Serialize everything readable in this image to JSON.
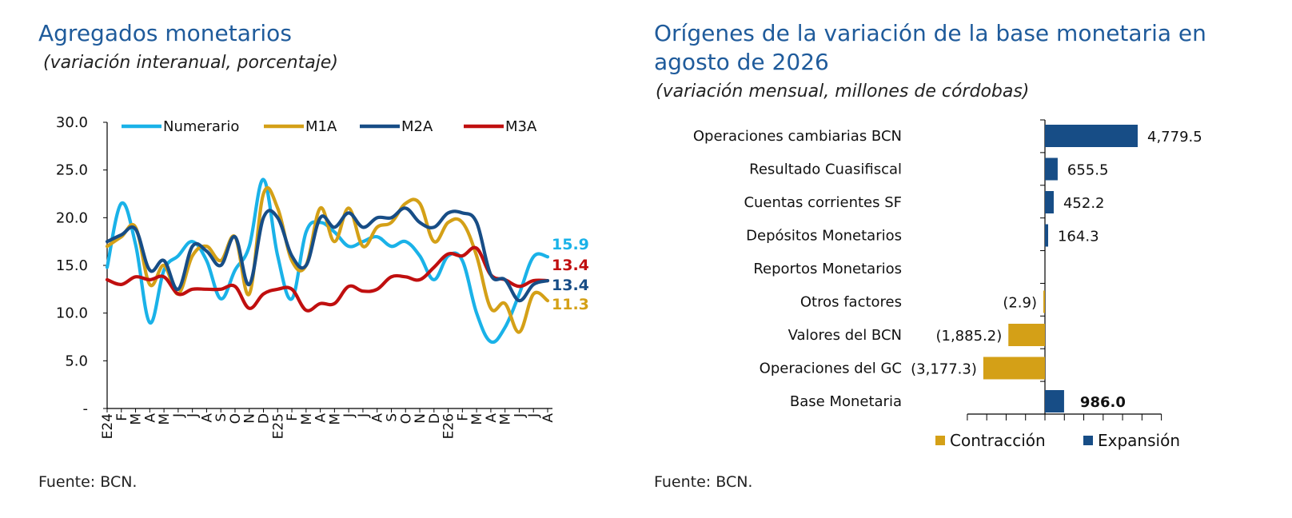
{
  "left": {
    "title": "Agregados monetarios",
    "subtitle": "(variación interanual, porcentaje)",
    "source": "Fuente: BCN."
  },
  "right": {
    "title_line1": "Orígenes de la variación de la base monetaria en",
    "title_line2": "agosto de 2026",
    "subtitle": "(variación mensual, millones de córdobas)",
    "source": "Fuente: BCN."
  },
  "chart_data": [
    {
      "type": "line",
      "y_ticks": [
        "30.0",
        "25.0",
        "20.0",
        "15.0",
        "10.0",
        "5.0",
        "-"
      ],
      "ylim": [
        0,
        30
      ],
      "categories": [
        "E24",
        "F",
        "M",
        "A",
        "M",
        "J",
        "J",
        "A",
        "S",
        "O",
        "N",
        "D",
        "E25",
        "F",
        "M",
        "A",
        "M",
        "J",
        "J",
        "A",
        "S",
        "O",
        "N",
        "D",
        "E26",
        "F",
        "M",
        "A",
        "M",
        "J",
        "J",
        "A"
      ],
      "series": [
        {
          "name": "Numerario",
          "color": "#1ab2e8",
          "values": [
            14.8,
            21.5,
            17.2,
            9.0,
            14.5,
            16.0,
            17.5,
            15.5,
            11.5,
            14.5,
            17.0,
            24.0,
            16.0,
            11.5,
            18.5,
            19.5,
            18.5,
            17.0,
            17.5,
            18.0,
            17.0,
            17.5,
            16.0,
            13.5,
            16.0,
            15.5,
            10.0,
            7.0,
            8.5,
            12.0,
            15.9,
            15.9
          ],
          "end_label": "15.9"
        },
        {
          "name": "M1A",
          "color": "#d4a017",
          "values": [
            17.0,
            18.0,
            19.0,
            13.0,
            15.0,
            12.0,
            16.0,
            17.0,
            15.5,
            18.0,
            12.0,
            22.5,
            21.0,
            15.5,
            15.0,
            21.0,
            17.5,
            21.0,
            17.0,
            19.0,
            19.5,
            21.5,
            21.5,
            17.5,
            19.5,
            19.5,
            16.0,
            10.5,
            11.0,
            8.0,
            12.0,
            11.3
          ],
          "end_label": "11.3"
        },
        {
          "name": "M2A",
          "color": "#174d86",
          "values": [
            17.5,
            18.2,
            18.8,
            14.5,
            15.5,
            12.5,
            17.0,
            16.5,
            15.0,
            18.0,
            13.0,
            20.0,
            20.0,
            16.0,
            15.0,
            20.0,
            19.0,
            20.5,
            19.0,
            20.0,
            20.0,
            21.0,
            19.5,
            19.0,
            20.5,
            20.5,
            19.5,
            14.0,
            13.5,
            11.3,
            13.0,
            13.4
          ],
          "end_label": "13.4"
        },
        {
          "name": "M3A",
          "color": "#c00f0f",
          "values": [
            13.5,
            13.0,
            13.8,
            13.5,
            13.8,
            12.0,
            12.5,
            12.5,
            12.5,
            12.8,
            10.5,
            12.0,
            12.5,
            12.5,
            10.3,
            11.0,
            11.0,
            12.8,
            12.3,
            12.5,
            13.8,
            13.8,
            13.5,
            14.8,
            16.2,
            16.0,
            16.8,
            14.0,
            13.5,
            12.8,
            13.4,
            13.4
          ],
          "end_label": "13.4"
        }
      ]
    },
    {
      "type": "bar",
      "orientation": "horizontal",
      "categories": [
        "Operaciones cambiarias BCN",
        "Resultado Cuasifiscal",
        "Cuentas corrientes SF",
        "Depósitos Monetarios",
        "Reportos Monetarios",
        "Otros factores",
        "Valores del BCN",
        "Operaciones del GC",
        "Base Monetaria"
      ],
      "values": [
        4779.5,
        655.5,
        452.2,
        164.3,
        0,
        -2.9,
        -1885.2,
        -3177.3,
        986.0
      ],
      "labels": [
        "4,779.5",
        "655.5",
        "452.2",
        "164.3",
        "",
        "(2.9)",
        "(1,885.2)",
        "(3,177.3)",
        "986.0"
      ],
      "xlim": [
        -4000,
        6000
      ],
      "legend": [
        {
          "name": "Contracción",
          "color": "#d4a017"
        },
        {
          "name": "Expansión",
          "color": "#174d86"
        }
      ]
    }
  ]
}
